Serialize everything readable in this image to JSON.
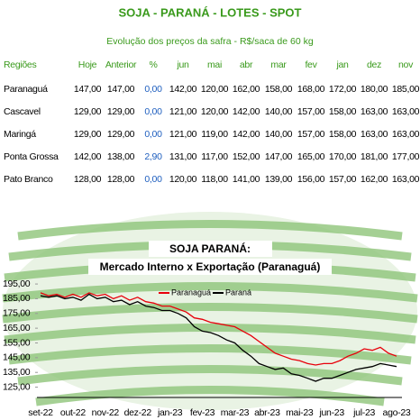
{
  "header": {
    "title": "SOJA - PARANÁ - LOTES - SPOT",
    "subtitle": "Evolução dos preços da safra - R$/saca de 60 kg"
  },
  "table": {
    "columns": [
      "Regiões",
      "Hoje",
      "Anterior",
      "%",
      "jun",
      "mai",
      "abr",
      "mar",
      "fev",
      "jan",
      "dez",
      "nov"
    ],
    "rows": [
      [
        "Paranaguá",
        "147,00",
        "147,00",
        "0,00",
        "142,00",
        "120,00",
        "162,00",
        "158,00",
        "168,00",
        "172,00",
        "180,00",
        "185,00"
      ],
      [
        "Cascavel",
        "129,00",
        "129,00",
        "0,00",
        "121,00",
        "120,00",
        "142,00",
        "140,00",
        "157,00",
        "158,00",
        "163,00",
        "163,00"
      ],
      [
        "Maringá",
        "129,00",
        "129,00",
        "0,00",
        "121,00",
        "119,00",
        "142,00",
        "140,00",
        "157,00",
        "158,00",
        "163,00",
        "163,00"
      ],
      [
        "Ponta Grossa",
        "142,00",
        "138,00",
        "2,90",
        "131,00",
        "117,00",
        "152,00",
        "147,00",
        "165,00",
        "170,00",
        "181,00",
        "177,00"
      ],
      [
        "Pato Branco",
        "128,00",
        "128,00",
        "0,00",
        "120,00",
        "118,00",
        "141,00",
        "139,00",
        "156,00",
        "157,00",
        "162,00",
        "163,00"
      ]
    ]
  },
  "chart_data": {
    "type": "line",
    "title": "SOJA PARANÁ:",
    "subtitle": "Mercado Interno x Exportação (Paranaguá)",
    "categories": [
      "set-22",
      null,
      null,
      null,
      "out-22",
      null,
      null,
      null,
      "nov-22",
      null,
      null,
      null,
      "dez-22",
      null,
      null,
      null,
      "jan-23",
      null,
      null,
      null,
      "fev-23",
      null,
      null,
      null,
      "mar-23",
      null,
      null,
      null,
      "abr-23",
      null,
      null,
      null,
      "mai-23",
      null,
      null,
      null,
      "jun-23",
      null,
      null,
      null,
      "jul-23",
      null,
      null,
      null,
      "ago-23"
    ],
    "series": [
      {
        "name": "Paranaguá",
        "color": "#e8000b",
        "values": [
          189,
          187,
          188,
          186,
          188,
          186,
          189,
          187,
          188,
          185,
          187,
          184,
          186,
          183,
          182,
          180,
          180,
          178,
          176,
          172,
          171,
          169,
          168,
          167,
          166,
          163,
          160,
          156,
          152,
          148,
          146,
          144,
          143,
          141,
          140,
          141,
          141,
          143,
          146,
          148,
          151,
          150,
          152,
          148,
          146
        ]
      },
      {
        "name": "Paraná",
        "color": "#000000",
        "values": [
          187,
          186,
          187,
          185,
          186,
          184,
          188,
          185,
          186,
          183,
          184,
          181,
          183,
          180,
          179,
          177,
          177,
          175,
          172,
          166,
          163,
          162,
          160,
          157,
          155,
          150,
          146,
          141,
          139,
          137,
          138,
          134,
          133,
          131,
          129,
          131,
          131,
          133,
          135,
          137,
          138,
          139,
          141,
          140,
          139
        ]
      }
    ],
    "ylim": [
      118,
      203
    ],
    "yticks": [
      {
        "value": 125,
        "label": "125,00"
      },
      {
        "value": 135,
        "label": "135,00"
      },
      {
        "value": 145,
        "label": "145,00"
      },
      {
        "value": 155,
        "label": "155,00"
      },
      {
        "value": 165,
        "label": "165,00"
      },
      {
        "value": 175,
        "label": "175,00"
      },
      {
        "value": 185,
        "label": "185,00"
      },
      {
        "value": 195,
        "label": "195,00"
      }
    ]
  }
}
